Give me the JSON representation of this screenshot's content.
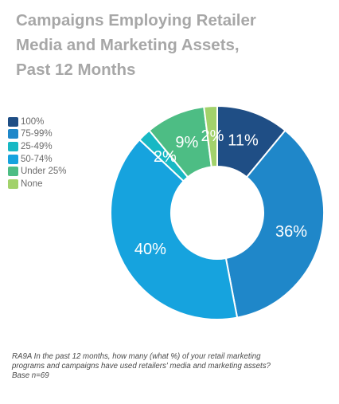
{
  "title": {
    "line1": "Campaigns Employing Retailer",
    "line2": "Media and Marketing Assets,",
    "line3": "Past 12 Months"
  },
  "chart_data": {
    "type": "pie",
    "variant": "donut",
    "title": "Campaigns Employing Retailer Media and Marketing Assets, Past 12 Months",
    "unit": "%",
    "legend_position": "left",
    "start_angle_deg": 0,
    "direction": "clockwise",
    "slices": [
      {
        "name": "100%",
        "value": 11,
        "label": "11%",
        "color": "#1f4e85"
      },
      {
        "name": "75-99%",
        "value": 36,
        "label": "36%",
        "color": "#1f87c9"
      },
      {
        "name": "50-74%",
        "value": 40,
        "label": "40%",
        "color": "#16a3de"
      },
      {
        "name": "25-49%",
        "value": 2,
        "label": "2%",
        "color": "#17b8c4"
      },
      {
        "name": "Under 25%",
        "value": 9,
        "label": "9%",
        "color": "#4dbd84"
      },
      {
        "name": "None",
        "value": 2,
        "label": "2%",
        "color": "#a2d26b"
      }
    ],
    "legend_order": [
      0,
      1,
      3,
      2,
      4,
      5
    ],
    "label_color": "#ffffff"
  },
  "footnote": {
    "line1": "RA9A In the past 12 months, how many (what %) of your retail marketing",
    "line2": "programs and campaigns have used retailers' media and marketing assets?",
    "line3": "Base n=69"
  }
}
